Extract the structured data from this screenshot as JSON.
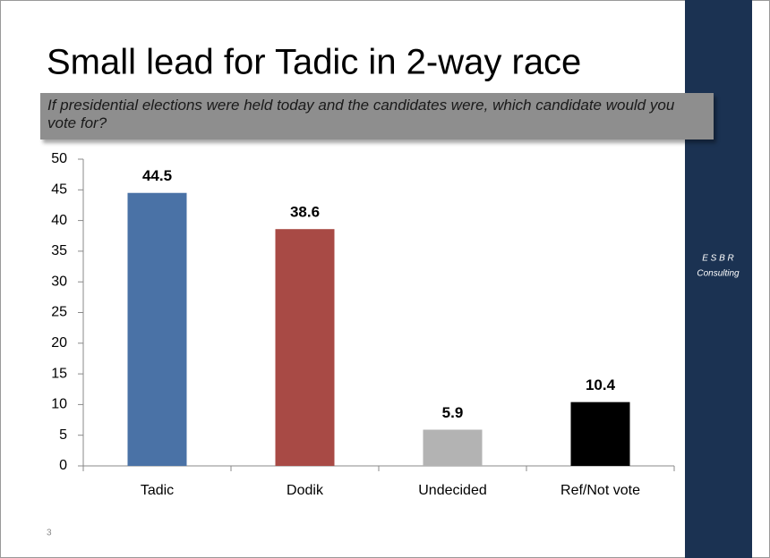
{
  "chart_data": {
    "type": "bar",
    "title": "Small lead for Tadic in 2-way race",
    "subtitle": "If presidential elections were held today and the candidates were, which candidate would you vote for?",
    "categories": [
      "Tadic",
      "Dodik",
      "Undecided",
      "Ref/Not vote"
    ],
    "values": [
      44.5,
      38.6,
      5.9,
      10.4
    ],
    "colors": [
      "#4a72a6",
      "#a84a45",
      "#b3b3b3",
      "#000000"
    ],
    "ylim": [
      0,
      50
    ],
    "yticks": [
      0,
      5,
      10,
      15,
      20,
      25,
      30,
      35,
      40,
      45,
      50
    ],
    "grid": false
  },
  "slide": {
    "brand": "E S B R",
    "brand_sub": "Consulting",
    "page_number": "3"
  }
}
